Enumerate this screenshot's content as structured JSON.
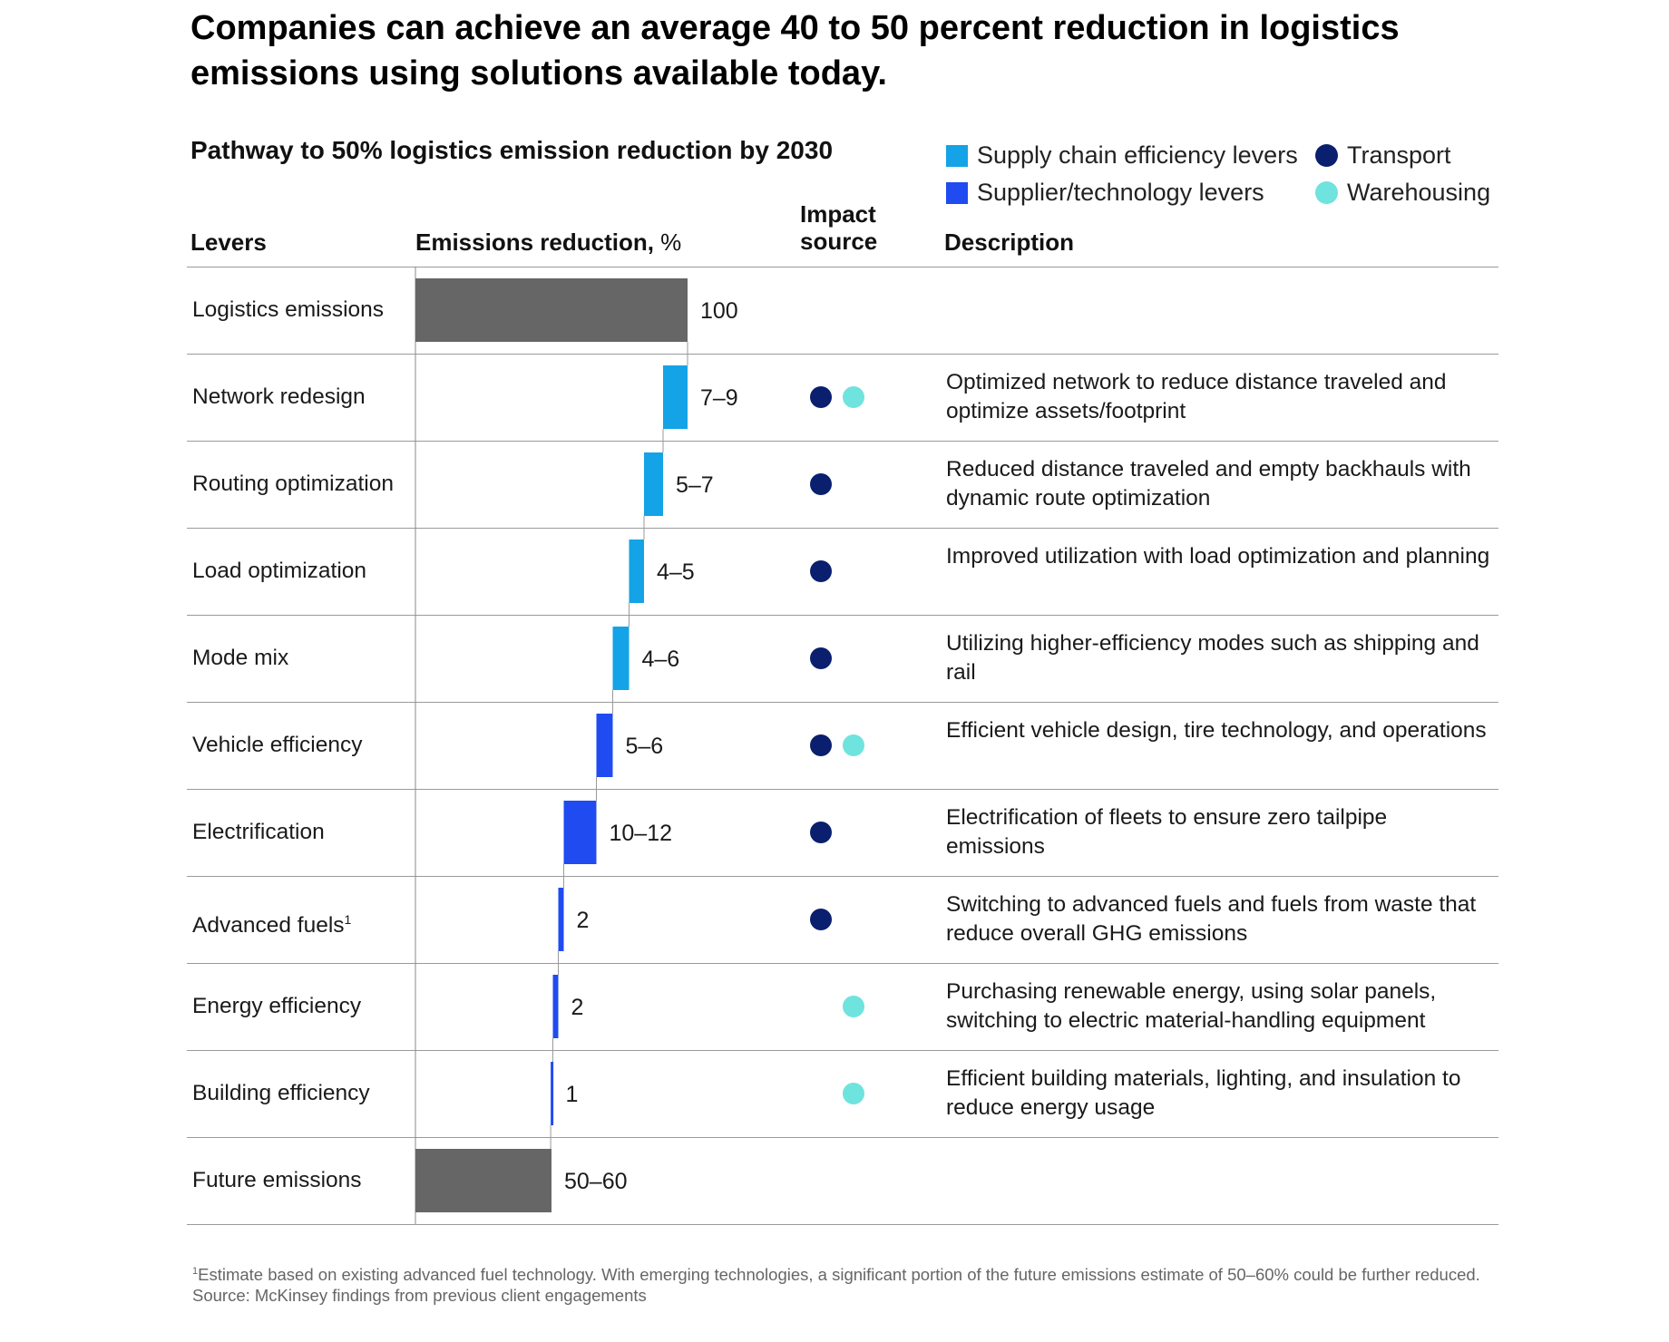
{
  "headline": "Companies can achieve an average 40 to 50 percent reduction in logistics emissions using solutions available today.",
  "subtitle": "Pathway to 50% logistics emission reduction by 2030",
  "legend": {
    "supply_chain": "Supply chain efficiency levers",
    "supplier_tech": "Supplier/technology levers",
    "transport": "Transport",
    "warehousing": "Warehousing"
  },
  "colors": {
    "supply_chain": "#13a3e6",
    "supplier_tech": "#1f4bf0",
    "total": "#666666",
    "transport": "#0a1f6e",
    "warehousing": "#6fe3de"
  },
  "columns": {
    "levers": "Levers",
    "emissions_bold": "Emissions reduction,",
    "emissions_unit": " %",
    "impact_line1": "Impact",
    "impact_line2": "source",
    "description": "Description"
  },
  "chart_data": {
    "type": "waterfall",
    "title": "Pathway to 50% logistics emission reduction by 2030",
    "xlabel": "Emissions reduction, %",
    "xlim": [
      0,
      100
    ],
    "rows": [
      {
        "lever": "Logistics emissions",
        "kind": "total",
        "label": "100",
        "low": 100,
        "high": 100,
        "start": 100,
        "end": 0,
        "transport": false,
        "warehousing": false,
        "description": ""
      },
      {
        "lever": "Network redesign",
        "kind": "supply_chain",
        "label": "7–9",
        "low": 7,
        "high": 9,
        "start": 100,
        "end": 91,
        "transport": true,
        "warehousing": true,
        "description": "Optimized network to reduce distance traveled and optimize assets/footprint"
      },
      {
        "lever": "Routing optimization",
        "kind": "supply_chain",
        "label": "5–7",
        "low": 5,
        "high": 7,
        "start": 91,
        "end": 84,
        "transport": true,
        "warehousing": false,
        "description": "Reduced distance traveled and empty backhauls with dynamic route optimization"
      },
      {
        "lever": "Load optimization",
        "kind": "supply_chain",
        "label": "4–5",
        "low": 4,
        "high": 5,
        "start": 84,
        "end": 78.5,
        "transport": true,
        "warehousing": false,
        "description": "Improved utilization with load optimization and planning"
      },
      {
        "lever": "Mode mix",
        "kind": "supply_chain",
        "label": "4–6",
        "low": 4,
        "high": 6,
        "start": 78.5,
        "end": 72.5,
        "transport": true,
        "warehousing": false,
        "description": "Utilizing higher-efficiency modes such as shipping and rail"
      },
      {
        "lever": "Vehicle efficiency",
        "kind": "supplier_tech",
        "label": "5–6",
        "low": 5,
        "high": 6,
        "start": 72.5,
        "end": 66.5,
        "transport": true,
        "warehousing": true,
        "description": "Efficient vehicle design, tire technology, and operations"
      },
      {
        "lever": "Electrification",
        "kind": "supplier_tech",
        "label": "10–12",
        "low": 10,
        "high": 12,
        "start": 66.5,
        "end": 54.5,
        "transport": true,
        "warehousing": false,
        "description": "Electrification of fleets to ensure zero tailpipe emissions"
      },
      {
        "lever": "Advanced fuels",
        "footnote_mark": "1",
        "kind": "supplier_tech",
        "label": "2",
        "low": 2,
        "high": 2,
        "start": 54.5,
        "end": 52.5,
        "transport": true,
        "warehousing": false,
        "description": "Switching to advanced fuels and fuels from waste that reduce overall GHG emissions"
      },
      {
        "lever": "Energy efficiency",
        "kind": "supplier_tech",
        "label": "2",
        "low": 2,
        "high": 2,
        "start": 52.5,
        "end": 50.5,
        "transport": false,
        "warehousing": true,
        "description": "Purchasing renewable energy, using solar panels, switching to electric material-handling equipment"
      },
      {
        "lever": "Building efficiency",
        "kind": "supplier_tech",
        "label": "1",
        "low": 1,
        "high": 1,
        "start": 50.5,
        "end": 49.7,
        "transport": false,
        "warehousing": true,
        "description": "Efficient building materials, lighting, and insulation to reduce energy usage"
      },
      {
        "lever": "Future emissions",
        "kind": "total",
        "label": "50–60",
        "low": 50,
        "high": 60,
        "start": 50,
        "end": 0,
        "transport": false,
        "warehousing": false,
        "description": ""
      }
    ]
  },
  "footnote": "Estimate based on existing advanced fuel technology. With emerging technologies, a significant portion of the future emissions estimate of 50–60% could be further reduced.",
  "footnote_mark": "1",
  "source": "Source: McKinsey findings from previous client engagements"
}
